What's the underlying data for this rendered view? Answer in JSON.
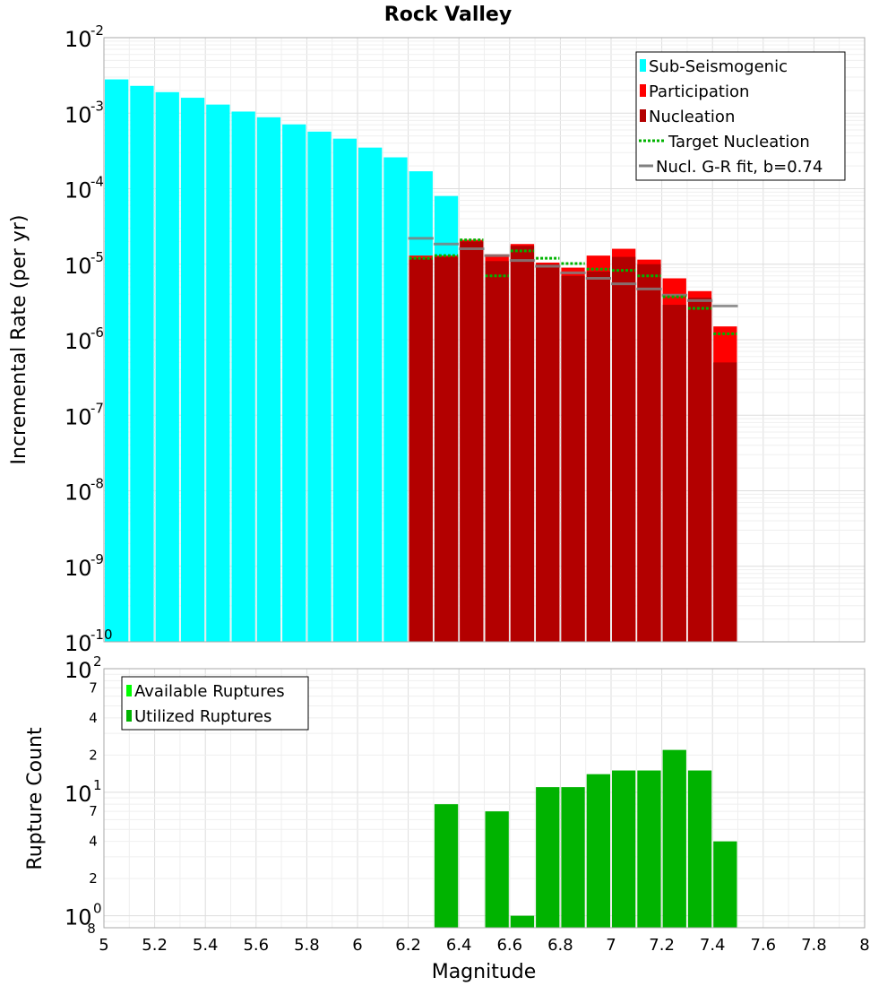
{
  "chart_data": [
    {
      "type": "bar",
      "title": "Rock Valley",
      "xlabel": "",
      "ylabel": "Incremental Rate (per yr)",
      "yscale": "log",
      "ylim": [
        1e-10,
        0.01
      ],
      "xlim": [
        5,
        8
      ],
      "grid": true,
      "y_major_ticks": [
        {
          "base": "10",
          "exp": "-10"
        },
        {
          "base": "10",
          "exp": "-9"
        },
        {
          "base": "10",
          "exp": "-8"
        },
        {
          "base": "10",
          "exp": "-7"
        },
        {
          "base": "10",
          "exp": "-6"
        },
        {
          "base": "10",
          "exp": "-5"
        },
        {
          "base": "10",
          "exp": "-4"
        },
        {
          "base": "10",
          "exp": "-3"
        },
        {
          "base": "10",
          "exp": "-2"
        }
      ],
      "legend": {
        "position": "top-right",
        "entries": [
          "Sub-Seismogenic",
          "Participation",
          "Nucleation",
          "Target Nucleation",
          "Nucl. G-R fit, b=0.74"
        ]
      },
      "colors": {
        "sub_seismogenic": "#00ffff",
        "participation": "#ff0000",
        "nucleation": "#b30000",
        "target": "#00b300",
        "gr_fit": "#808080"
      },
      "series": [
        {
          "name": "Sub-Seismogenic",
          "x": [
            5.05,
            5.15,
            5.25,
            5.35,
            5.45,
            5.55,
            5.65,
            5.75,
            5.85,
            5.95,
            6.05,
            6.15,
            6.25,
            6.35
          ],
          "values": [
            0.0028,
            0.0023,
            0.0019,
            0.0016,
            0.0013,
            0.00105,
            0.00088,
            0.00071,
            0.00057,
            0.00046,
            0.00035,
            0.00026,
            0.00017,
            8e-05
          ]
        },
        {
          "name": "Participation",
          "x": [
            6.25,
            6.35,
            6.45,
            6.55,
            6.65,
            6.75,
            6.85,
            6.95,
            7.05,
            7.15,
            7.25,
            7.35,
            7.45
          ],
          "values": [
            1.3e-05,
            1.3e-05,
            2.1e-05,
            1.35e-05,
            1.85e-05,
            1.05e-05,
            9e-06,
            1.3e-05,
            1.6e-05,
            1.15e-05,
            6.5e-06,
            4.4e-06,
            1.5e-06
          ]
        },
        {
          "name": "Nucleation",
          "x": [
            6.25,
            6.35,
            6.45,
            6.55,
            6.65,
            6.75,
            6.85,
            6.95,
            7.05,
            7.15,
            7.25,
            7.35,
            7.45
          ],
          "values": [
            1.2e-05,
            1.25e-05,
            2e-05,
            1.1e-05,
            1.75e-05,
            1e-05,
            7e-06,
            8e-06,
            1.25e-05,
            1e-05,
            2.9e-06,
            3.6e-06,
            5e-07
          ]
        },
        {
          "name": "Target Nucleation",
          "x": [
            6.25,
            6.35,
            6.45,
            6.55,
            6.65,
            6.75,
            6.85,
            6.95,
            7.05,
            7.15,
            7.25,
            7.35,
            7.45
          ],
          "values": [
            1.2e-05,
            1.3e-05,
            2.1e-05,
            7e-06,
            1.5e-05,
            1.2e-05,
            1.02e-05,
            8.6e-06,
            8.3e-06,
            7e-06,
            3.7e-06,
            2.6e-06,
            1.2e-06
          ]
        },
        {
          "name": "Nucl. G-R fit, b=0.74",
          "x": [
            6.25,
            6.35,
            6.45,
            6.55,
            6.65,
            6.75,
            6.85,
            6.95,
            7.05,
            7.15,
            7.25,
            7.35,
            7.45
          ],
          "values": [
            2.2e-05,
            1.85e-05,
            1.6e-05,
            1.3e-05,
            1.12e-05,
            9.4e-06,
            7.7e-06,
            6.5e-06,
            5.5e-06,
            4.7e-06,
            3.9e-06,
            3.3e-06,
            2.8e-06
          ]
        }
      ]
    },
    {
      "type": "bar",
      "title": "",
      "xlabel": "Magnitude",
      "ylabel": "Rupture Count",
      "yscale": "log",
      "ylim": [
        0.8,
        100
      ],
      "xlim": [
        5,
        8
      ],
      "grid": true,
      "x_ticks": [
        "5",
        "5.2",
        "5.4",
        "5.6",
        "5.8",
        "6",
        "6.2",
        "6.4",
        "6.6",
        "6.8",
        "7",
        "7.2",
        "7.4",
        "7.6",
        "7.8",
        "8"
      ],
      "y_major_ticks": [
        {
          "base": "10",
          "exp": "0"
        },
        {
          "base": "10",
          "exp": "1"
        },
        {
          "base": "10",
          "exp": "2"
        }
      ],
      "y_minor_ticks": [
        {
          "value": 2,
          "label": "2"
        },
        {
          "value": 4,
          "label": "4"
        },
        {
          "value": 7,
          "label": "7"
        },
        {
          "value": 20,
          "label": "2"
        },
        {
          "value": 40,
          "label": "4"
        },
        {
          "value": 70,
          "label": "7"
        }
      ],
      "y_bottom_label": "8",
      "legend": {
        "position": "top-left",
        "entries": [
          "Available Ruptures",
          "Utilized Ruptures"
        ]
      },
      "colors": {
        "available": "#00ff00",
        "utilized": "#00b300"
      },
      "series": [
        {
          "name": "Utilized Ruptures",
          "x": [
            6.35,
            6.55,
            6.65,
            6.75,
            6.85,
            6.95,
            7.05,
            7.15,
            7.25,
            7.35,
            7.45
          ],
          "values": [
            8,
            7,
            1,
            11,
            11,
            14,
            15,
            15,
            22,
            15,
            4
          ]
        }
      ]
    }
  ]
}
